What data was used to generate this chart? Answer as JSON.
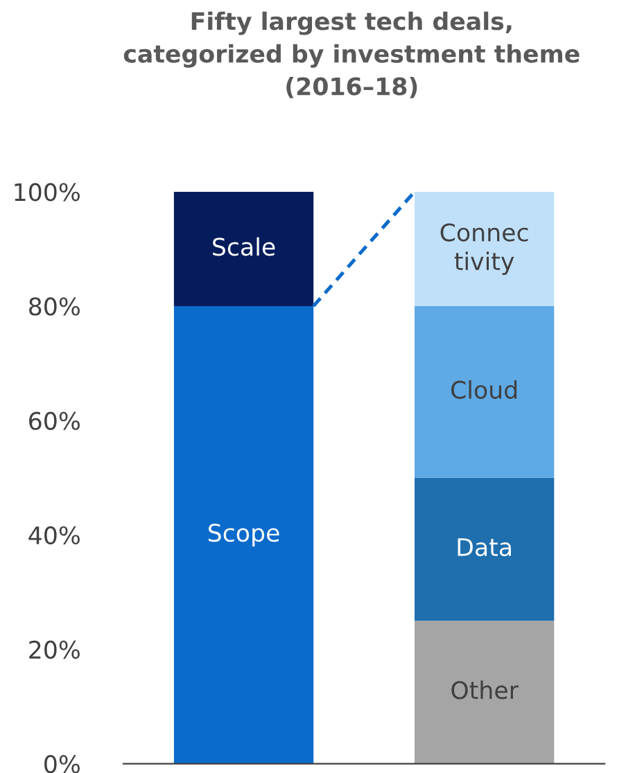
{
  "chart_data": {
    "type": "bar",
    "title": "Fifty largest tech deals,\ncategorized by investment theme\n(2016–18)",
    "categories": [
      null,
      null
    ],
    "stacked": true,
    "ylim": [
      0,
      100
    ],
    "yticks": [
      {
        "value": 0,
        "label": "0%"
      },
      {
        "value": 20,
        "label": "20%"
      },
      {
        "value": 40,
        "label": "40%"
      },
      {
        "value": 60,
        "label": "60%"
      },
      {
        "value": 80,
        "label": "80%"
      },
      {
        "value": 100,
        "label": "100%"
      }
    ],
    "grid": false,
    "legend": false,
    "series": [
      {
        "name": "Scope",
        "color": "#0b6bcb",
        "values": [
          80,
          null
        ]
      },
      {
        "name": "Scale",
        "color": "#051c5c",
        "values": [
          20,
          null
        ]
      },
      {
        "name": "Other",
        "color": "#a5a5a5",
        "values": [
          null,
          25
        ]
      },
      {
        "name": "Data",
        "color": "#1f6fae",
        "values": [
          null,
          25
        ]
      },
      {
        "name": "Cloud",
        "color": "#5fa9e4",
        "values": [
          null,
          30
        ]
      },
      {
        "name": "Connec\ntivity",
        "color": "#c0e0fa",
        "values": [
          null,
          20
        ]
      }
    ]
  }
}
